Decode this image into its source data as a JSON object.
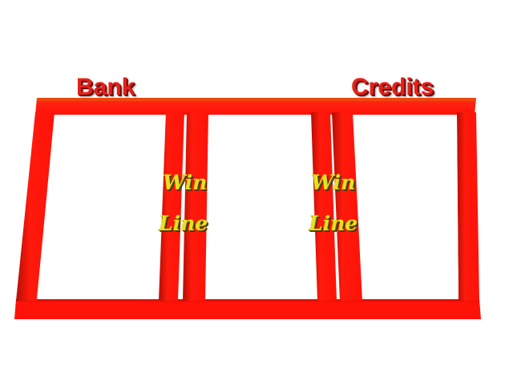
{
  "labels": {
    "bank": "Bank",
    "credits": "Credits"
  },
  "win_lines": [
    {
      "word1": "Win",
      "word2": "Line"
    },
    {
      "word1": "Win",
      "word2": "Line"
    }
  ],
  "colors": {
    "frame_red": "#ff1208",
    "frame_shadow": "#c81008",
    "label_red": "#e5201a",
    "winline_yellow": "#e8e020",
    "reel_window": "#ffffff"
  }
}
